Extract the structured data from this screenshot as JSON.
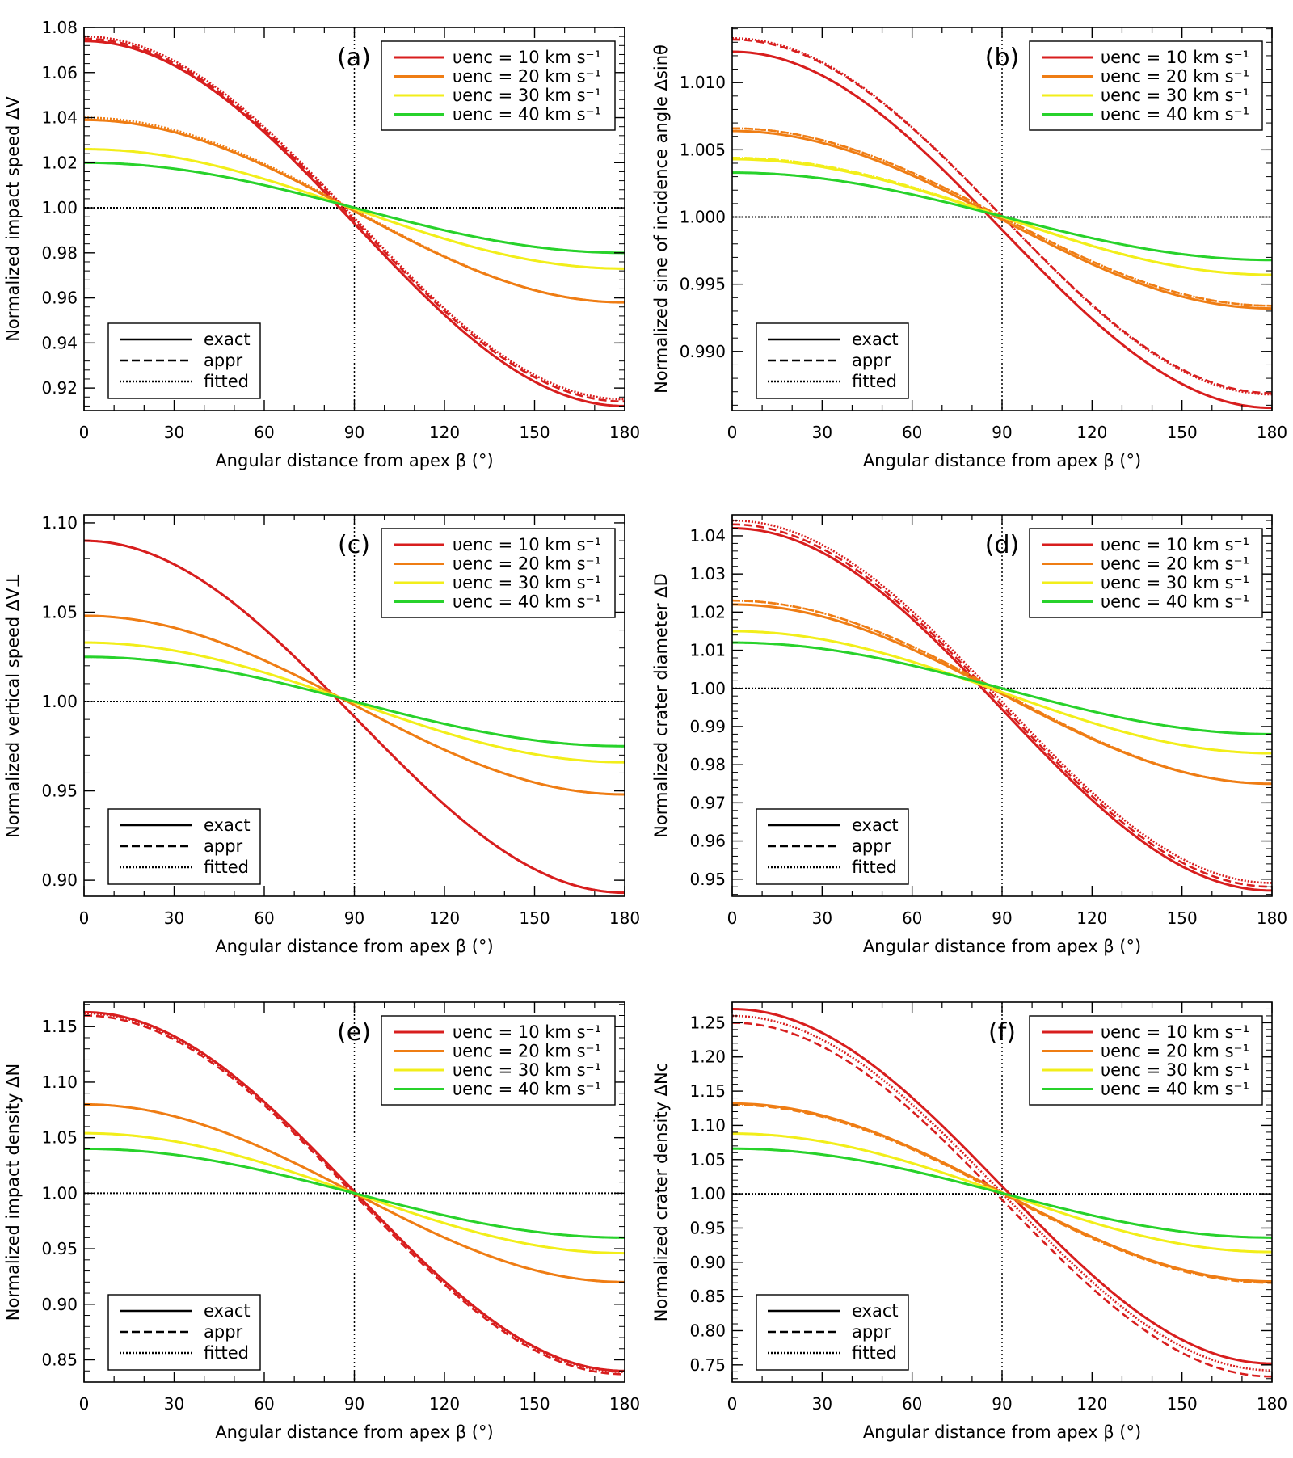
{
  "figure": {
    "xlabel": "Angular distance from apex β (°)",
    "series_colors": [
      "#d81e1e",
      "#ef7d14",
      "#f2ee1a",
      "#28d22b"
    ],
    "reference_color": "#000000",
    "legend_style_labels": [
      "exact",
      "appr",
      "fitted"
    ],
    "legend_series_labels": [
      "υenc = 10 km s⁻¹",
      "υenc = 20 km s⁻¹",
      "υenc = 30 km s⁻¹",
      "υenc = 40 km s⁻¹"
    ]
  },
  "chart_data": [
    {
      "type": "line",
      "panel_label": "(a)",
      "ylabel": "Normalized impact speed ΔV",
      "xlabel": "Angular distance from apex β (°)",
      "xlim": [
        0,
        180
      ],
      "ylim": [
        0.91,
        1.08
      ],
      "x_ticks": [
        "0",
        "30",
        "60",
        "90",
        "120",
        "150",
        "180"
      ],
      "y_ticks": [
        "0.92",
        "0.94",
        "0.96",
        "0.98",
        "1.00",
        "1.02",
        "1.04",
        "1.06",
        "1.08"
      ],
      "reference_y": 1.0,
      "reference_x": 90,
      "series": [
        {
          "name": "υenc = 10 km s⁻¹",
          "exact": {
            "a0": 1.074,
            "a180": 0.912
          },
          "appr": {
            "a0": 1.075,
            "a180": 0.914
          },
          "fitted": {
            "a0": 1.076,
            "a180": 0.915
          }
        },
        {
          "name": "υenc = 20 km s⁻¹",
          "exact": {
            "a0": 1.039,
            "a180": 0.958
          },
          "appr": {
            "a0": 1.039,
            "a180": 0.958
          },
          "fitted": {
            "a0": 1.04,
            "a180": 0.958
          }
        },
        {
          "name": "υenc = 30 km s⁻¹",
          "exact": {
            "a0": 1.026,
            "a180": 0.973
          },
          "appr": {
            "a0": 1.026,
            "a180": 0.973
          },
          "fitted": {
            "a0": 1.026,
            "a180": 0.973
          }
        },
        {
          "name": "υenc = 40 km s⁻¹",
          "exact": {
            "a0": 1.02,
            "a180": 0.98
          },
          "appr": {
            "a0": 1.02,
            "a180": 0.98
          },
          "fitted": {
            "a0": 1.02,
            "a180": 0.98
          }
        }
      ]
    },
    {
      "type": "line",
      "panel_label": "(b)",
      "ylabel": "Normalized sine of incidence angle Δsinθ",
      "xlabel": "Angular distance from apex β (°)",
      "xlim": [
        0,
        180
      ],
      "ylim": [
        0.9856,
        1.0141
      ],
      "x_ticks": [
        "0",
        "30",
        "60",
        "90",
        "120",
        "150",
        "180"
      ],
      "y_ticks": [
        "0.990",
        "0.995",
        "1.000",
        "1.005",
        "1.010"
      ],
      "reference_y": 1.0,
      "reference_x": 90,
      "series": [
        {
          "name": "υenc = 10 km s⁻¹",
          "exact": {
            "a0": 1.0123,
            "a180": 0.9858
          },
          "appr": {
            "a0": 1.0132,
            "a180": 0.9869
          },
          "fitted": {
            "a0": 1.0133,
            "a180": 0.9868
          }
        },
        {
          "name": "υenc = 20 km s⁻¹",
          "exact": {
            "a0": 1.0064,
            "a180": 0.9932
          },
          "appr": {
            "a0": 1.0066,
            "a180": 0.9934
          },
          "fitted": {
            "a0": 1.0066,
            "a180": 0.9934
          }
        },
        {
          "name": "υenc = 30 km s⁻¹",
          "exact": {
            "a0": 1.0043,
            "a180": 0.9957
          },
          "appr": {
            "a0": 1.0044,
            "a180": 0.9957
          },
          "fitted": {
            "a0": 1.0044,
            "a180": 0.9957
          }
        },
        {
          "name": "υenc = 40 km s⁻¹",
          "exact": {
            "a0": 1.0033,
            "a180": 0.9968
          },
          "appr": {
            "a0": 1.0033,
            "a180": 0.9968
          },
          "fitted": {
            "a0": 1.0033,
            "a180": 0.9968
          }
        }
      ]
    },
    {
      "type": "line",
      "panel_label": "(c)",
      "ylabel": "Normalized vertical speed ΔV⊥",
      "xlabel": "Angular distance from apex β (°)",
      "xlim": [
        0,
        180
      ],
      "ylim": [
        0.891,
        1.1045
      ],
      "x_ticks": [
        "0",
        "30",
        "60",
        "90",
        "120",
        "150",
        "180"
      ],
      "y_ticks": [
        "0.90",
        "0.95",
        "1.00",
        "1.05",
        "1.10"
      ],
      "reference_y": 1.0,
      "reference_x": 90,
      "series": [
        {
          "name": "υenc = 10 km s⁻¹",
          "exact": {
            "a0": 1.09,
            "a180": 0.893
          },
          "appr": {
            "a0": 1.09,
            "a180": 0.893
          },
          "fitted": {
            "a0": 1.09,
            "a180": 0.893
          }
        },
        {
          "name": "υenc = 20 km s⁻¹",
          "exact": {
            "a0": 1.048,
            "a180": 0.948
          },
          "appr": {
            "a0": 1.048,
            "a180": 0.948
          },
          "fitted": {
            "a0": 1.048,
            "a180": 0.948
          }
        },
        {
          "name": "υenc = 30 km s⁻¹",
          "exact": {
            "a0": 1.033,
            "a180": 0.966
          },
          "appr": {
            "a0": 1.033,
            "a180": 0.966
          },
          "fitted": {
            "a0": 1.033,
            "a180": 0.966
          }
        },
        {
          "name": "υenc = 40 km s⁻¹",
          "exact": {
            "a0": 1.025,
            "a180": 0.975
          },
          "appr": {
            "a0": 1.025,
            "a180": 0.975
          },
          "fitted": {
            "a0": 1.025,
            "a180": 0.975
          }
        }
      ]
    },
    {
      "type": "line",
      "panel_label": "(d)",
      "ylabel": "Normalized crater diameter ΔD",
      "xlabel": "Angular distance from apex β (°)",
      "xlim": [
        0,
        180
      ],
      "ylim": [
        0.9455,
        1.0455
      ],
      "x_ticks": [
        "0",
        "30",
        "60",
        "90",
        "120",
        "150",
        "180"
      ],
      "y_ticks": [
        "0.95",
        "0.96",
        "0.97",
        "0.98",
        "0.99",
        "1.00",
        "1.01",
        "1.02",
        "1.03",
        "1.04"
      ],
      "reference_y": 1.0,
      "reference_x": 90,
      "series": [
        {
          "name": "υenc = 10 km s⁻¹",
          "exact": {
            "a0": 1.042,
            "a180": 0.947
          },
          "appr": {
            "a0": 1.043,
            "a180": 0.948
          },
          "fitted": {
            "a0": 1.044,
            "a180": 0.949
          }
        },
        {
          "name": "υenc = 20 km s⁻¹",
          "exact": {
            "a0": 1.022,
            "a180": 0.975
          },
          "appr": {
            "a0": 1.023,
            "a180": 0.975
          },
          "fitted": {
            "a0": 1.023,
            "a180": 0.975
          }
        },
        {
          "name": "υenc = 30 km s⁻¹",
          "exact": {
            "a0": 1.015,
            "a180": 0.983
          },
          "appr": {
            "a0": 1.015,
            "a180": 0.983
          },
          "fitted": {
            "a0": 1.015,
            "a180": 0.983
          }
        },
        {
          "name": "υenc = 40 km s⁻¹",
          "exact": {
            "a0": 1.012,
            "a180": 0.988
          },
          "appr": {
            "a0": 1.012,
            "a180": 0.988
          },
          "fitted": {
            "a0": 1.012,
            "a180": 0.988
          }
        }
      ]
    },
    {
      "type": "line",
      "panel_label": "(e)",
      "ylabel": "Normalized impact density ΔN",
      "xlabel": "Angular distance from apex β (°)",
      "xlim": [
        0,
        180
      ],
      "ylim": [
        0.83,
        1.172
      ],
      "x_ticks": [
        "0",
        "30",
        "60",
        "90",
        "120",
        "150",
        "180"
      ],
      "y_ticks": [
        "0.85",
        "0.90",
        "0.95",
        "1.00",
        "1.05",
        "1.10",
        "1.15"
      ],
      "reference_y": 1.0,
      "reference_x": 90,
      "series": [
        {
          "name": "υenc = 10 km s⁻¹",
          "exact": {
            "a0": 1.163,
            "a180": 0.84
          },
          "appr": {
            "a0": 1.16,
            "a180": 0.837
          },
          "fitted": {
            "a0": 1.162,
            "a180": 0.839
          }
        },
        {
          "name": "υenc = 20 km s⁻¹",
          "exact": {
            "a0": 1.08,
            "a180": 0.92
          },
          "appr": {
            "a0": 1.08,
            "a180": 0.92
          },
          "fitted": {
            "a0": 1.08,
            "a180": 0.92
          }
        },
        {
          "name": "υenc = 30 km s⁻¹",
          "exact": {
            "a0": 1.054,
            "a180": 0.946
          },
          "appr": {
            "a0": 1.054,
            "a180": 0.946
          },
          "fitted": {
            "a0": 1.054,
            "a180": 0.946
          }
        },
        {
          "name": "υenc = 40 km s⁻¹",
          "exact": {
            "a0": 1.04,
            "a180": 0.96
          },
          "appr": {
            "a0": 1.04,
            "a180": 0.96
          },
          "fitted": {
            "a0": 1.04,
            "a180": 0.96
          }
        }
      ]
    },
    {
      "type": "line",
      "panel_label": "(f)",
      "ylabel": "Normalized crater density ΔNc",
      "xlabel": "Angular distance from apex β (°)",
      "xlim": [
        0,
        180
      ],
      "ylim": [
        0.725,
        1.28
      ],
      "x_ticks": [
        "0",
        "30",
        "60",
        "90",
        "120",
        "150",
        "180"
      ],
      "y_ticks": [
        "0.75",
        "0.80",
        "0.85",
        "0.90",
        "0.95",
        "1.00",
        "1.05",
        "1.10",
        "1.15",
        "1.20",
        "1.25"
      ],
      "reference_y": 1.0,
      "reference_x": 90,
      "series": [
        {
          "name": "υenc = 10 km s⁻¹",
          "exact": {
            "a0": 1.27,
            "a180": 0.752
          },
          "appr": {
            "a0": 1.25,
            "a180": 0.733
          },
          "fitted": {
            "a0": 1.26,
            "a180": 0.742
          }
        },
        {
          "name": "υenc = 20 km s⁻¹",
          "exact": {
            "a0": 1.132,
            "a180": 0.872
          },
          "appr": {
            "a0": 1.13,
            "a180": 0.87
          },
          "fitted": {
            "a0": 1.131,
            "a180": 0.871
          }
        },
        {
          "name": "υenc = 30 km s⁻¹",
          "exact": {
            "a0": 1.088,
            "a180": 0.915
          },
          "appr": {
            "a0": 1.088,
            "a180": 0.915
          },
          "fitted": {
            "a0": 1.088,
            "a180": 0.915
          }
        },
        {
          "name": "υenc = 40 km s⁻¹",
          "exact": {
            "a0": 1.066,
            "a180": 0.936
          },
          "appr": {
            "a0": 1.066,
            "a180": 0.936
          },
          "fitted": {
            "a0": 1.066,
            "a180": 0.936
          }
        }
      ]
    }
  ]
}
